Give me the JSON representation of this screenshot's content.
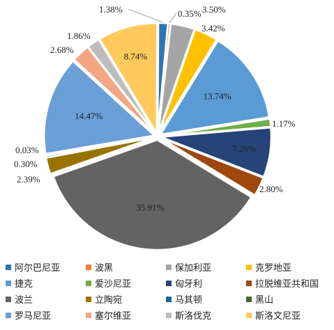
{
  "chart_data": {
    "type": "pie",
    "title": "",
    "legend_position": "bottom",
    "slices": [
      {
        "name": "阿尔巴尼亚",
        "value": 1.38,
        "label": "1.38%",
        "color": "#2e75b6"
      },
      {
        "name": "波黑",
        "value": 0.35,
        "label": "0.35%",
        "color": "#ed7d31"
      },
      {
        "name": "保加利亚",
        "value": 3.5,
        "label": "3.50%",
        "color": "#a5a5a5"
      },
      {
        "name": "克罗地亚",
        "value": 3.42,
        "label": "3.42%",
        "color": "#ffc000"
      },
      {
        "name": "捷克",
        "value": 13.74,
        "label": "13.74%",
        "color": "#5b9bd5"
      },
      {
        "name": "爱沙尼亚",
        "value": 1.17,
        "label": "1.17%",
        "color": "#70ad47"
      },
      {
        "name": "匈牙利",
        "value": 7.26,
        "label": "7.26%",
        "color": "#264478"
      },
      {
        "name": "拉脱维亚共和国",
        "value": 2.8,
        "label": "2.80%",
        "color": "#9e480e"
      },
      {
        "name": "波兰",
        "value": 35.91,
        "label": "35.91%",
        "color": "#636363"
      },
      {
        "name": "立陶宛",
        "value": 2.39,
        "label": "2.39%",
        "color": "#997300"
      },
      {
        "name": "马其顿",
        "value": 0.3,
        "label": "0.30%",
        "color": "#255e91"
      },
      {
        "name": "黑山",
        "value": 0.03,
        "label": "0.03%",
        "color": "#43682b"
      },
      {
        "name": "罗马尼亚",
        "value": 14.47,
        "label": "14.47%",
        "color": "#6a9fd8"
      },
      {
        "name": "塞尔维亚",
        "value": 2.68,
        "label": "2.68%",
        "color": "#f4a582"
      },
      {
        "name": "斯洛伐克",
        "value": 1.86,
        "label": "1.86%",
        "color": "#bdbdbd"
      },
      {
        "name": "斯洛文尼亚",
        "value": 8.74,
        "label": "8.74%",
        "color": "#ffc95c"
      }
    ]
  }
}
